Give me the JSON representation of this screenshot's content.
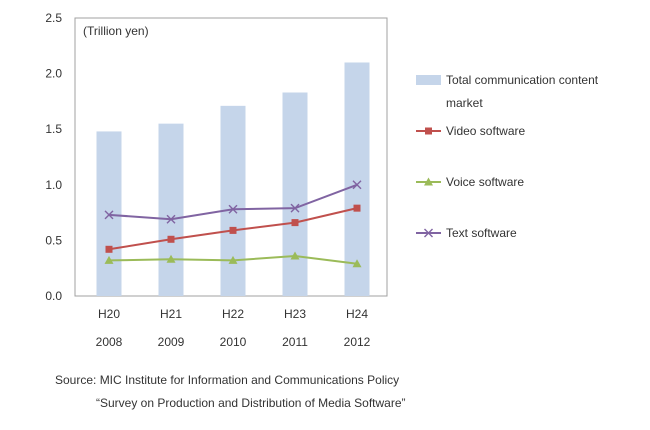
{
  "chart_data": {
    "type": "bar+line",
    "unit_label": "(Trillion yen)",
    "categories": [
      "H20",
      "H21",
      "H22",
      "H23",
      "H24"
    ],
    "categories_secondary": [
      "2008",
      "2009",
      "2010",
      "2011",
      "2012"
    ],
    "ylim": [
      0,
      2.5
    ],
    "yticks": [
      "0.0",
      "0.5",
      "1.0",
      "1.5",
      "2.0",
      "2.5"
    ],
    "ytick_values": [
      0,
      0.5,
      1.0,
      1.5,
      2.0,
      2.5
    ],
    "grid": false,
    "legend_position": "right",
    "series": [
      {
        "name": "Total communication content market",
        "type": "bar",
        "color": "#c5d5ea",
        "values": [
          1.48,
          1.55,
          1.71,
          1.83,
          2.1
        ]
      },
      {
        "name": "Video software",
        "type": "line",
        "marker": "square",
        "color": "#c0504d",
        "values": [
          0.42,
          0.51,
          0.59,
          0.66,
          0.79
        ]
      },
      {
        "name": "Voice software",
        "type": "line",
        "marker": "triangle",
        "color": "#9bbb59",
        "values": [
          0.32,
          0.33,
          0.32,
          0.36,
          0.29
        ]
      },
      {
        "name": "Text software",
        "type": "line",
        "marker": "x",
        "color": "#8064a2",
        "values": [
          0.73,
          0.69,
          0.78,
          0.79,
          1.0
        ]
      }
    ]
  },
  "source": {
    "line1": "Source: MIC Institute for Information and Communications Policy",
    "line2": "“Survey on Production and Distribution of Media Software”"
  }
}
